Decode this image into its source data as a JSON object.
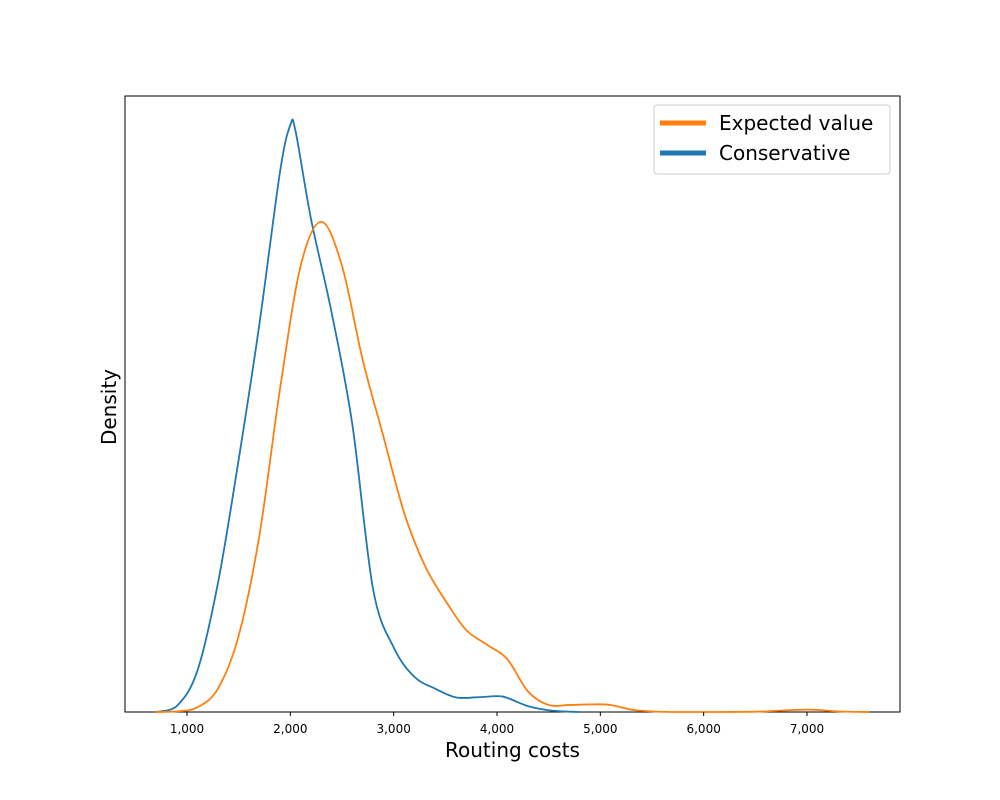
{
  "chart_data": {
    "type": "line",
    "xlabel": "Routing costs",
    "ylabel": "Density",
    "xlim": [
      400,
      7900
    ],
    "ylim": [
      0,
      1.0
    ],
    "x_ticks": [
      1000,
      2000,
      3000,
      4000,
      5000,
      6000,
      7000
    ],
    "x_tick_labels": [
      "1,000",
      "2,000",
      "3,000",
      "4,000",
      "5,000",
      "6,000",
      "7,000"
    ],
    "y_ticks_shown": false,
    "grid": false,
    "legend_position": "top-right",
    "series": [
      {
        "name": "Expected value",
        "color": "#ff7f0e",
        "x": [
          700,
          900,
          1100,
          1300,
          1500,
          1700,
          1900,
          2100,
          2300,
          2500,
          2700,
          2900,
          3100,
          3300,
          3500,
          3700,
          3900,
          4100,
          4300,
          4500,
          4700,
          4900,
          5100,
          5300,
          5500,
          5700,
          6000,
          6500,
          7000,
          7300,
          7600
        ],
        "values": [
          0.0,
          0.001,
          0.008,
          0.04,
          0.13,
          0.3,
          0.55,
          0.76,
          0.835,
          0.76,
          0.6,
          0.47,
          0.34,
          0.25,
          0.19,
          0.14,
          0.115,
          0.09,
          0.035,
          0.012,
          0.012,
          0.013,
          0.012,
          0.004,
          0.001,
          0.0,
          0.0,
          0.0005,
          0.004,
          0.001,
          0.0
        ]
      },
      {
        "name": "Conservative",
        "color": "#1f77b4",
        "x": [
          700,
          900,
          1100,
          1300,
          1500,
          1700,
          1900,
          2000,
          2050,
          2200,
          2400,
          2600,
          2800,
          3000,
          3200,
          3400,
          3600,
          3800,
          4000,
          4100,
          4300,
          4500,
          4700,
          4800
        ],
        "values": [
          0.0,
          0.01,
          0.07,
          0.22,
          0.43,
          0.66,
          0.92,
          1.0,
          0.99,
          0.84,
          0.68,
          0.49,
          0.21,
          0.11,
          0.06,
          0.04,
          0.025,
          0.025,
          0.027,
          0.024,
          0.01,
          0.003,
          0.0005,
          0.0
        ]
      }
    ]
  }
}
